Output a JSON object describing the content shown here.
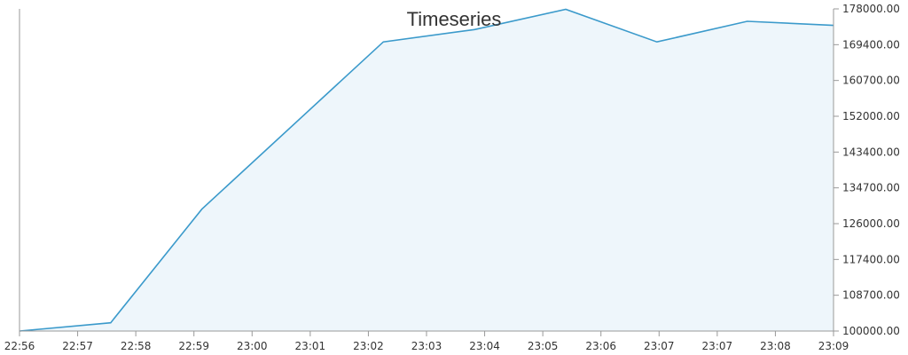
{
  "chart_data": {
    "type": "area",
    "title": "Timeseries",
    "xlabel": "",
    "ylabel": "",
    "x_tick_labels": [
      "22:56",
      "22:57",
      "22:58",
      "22:59",
      "23:00",
      "23:01",
      "23:02",
      "23:03",
      "23:04",
      "23:05",
      "23:06",
      "23:07",
      "23:07",
      "23:08",
      "23:09"
    ],
    "y_tick_labels": [
      "178000.00",
      "169400.00",
      "160700.00",
      "152000.00",
      "143400.00",
      "134700.00",
      "126000.00",
      "117400.00",
      "108700.00",
      "100000.00"
    ],
    "ylim": [
      100000,
      178000
    ],
    "y_axis_position": "right",
    "grid": false,
    "legend": "none",
    "series": [
      {
        "x_fraction": [
          0.0,
          0.112,
          0.224,
          0.447,
          0.559,
          0.671,
          0.783,
          0.894,
          1.0
        ],
        "values": [
          100000,
          102000,
          129500,
          170000,
          173000,
          177900,
          170000,
          175000,
          174000
        ]
      }
    ],
    "colors": {
      "line": "#3b9acb",
      "fill": "#eef6fb",
      "axis": "#999999",
      "text": "#333333"
    }
  }
}
